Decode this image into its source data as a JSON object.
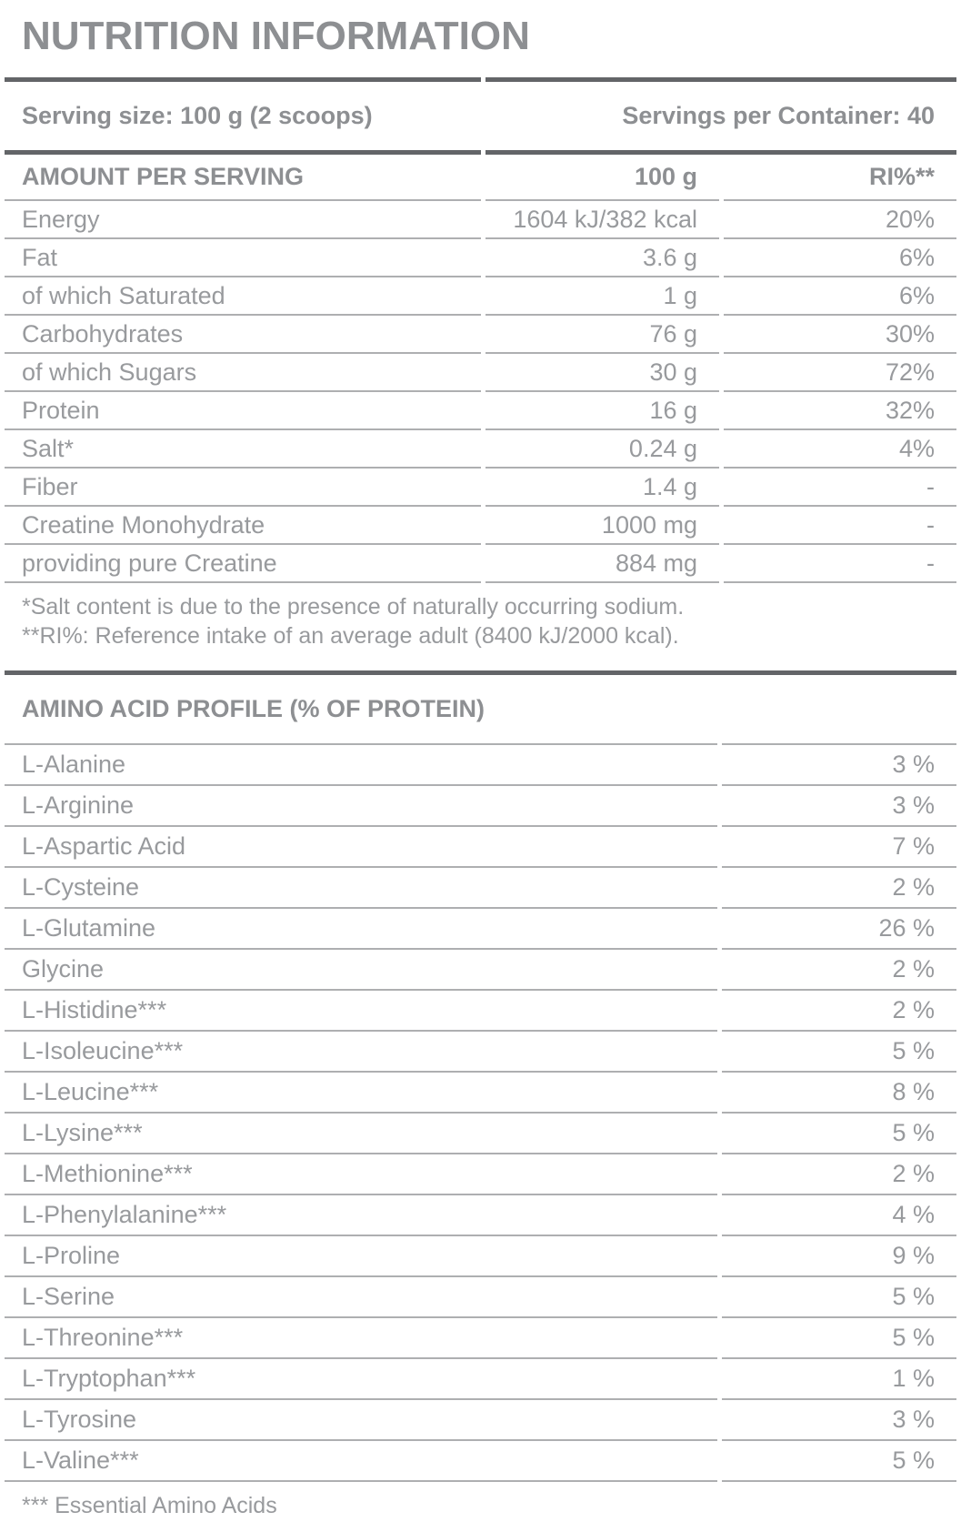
{
  "title": "NUTRITION INFORMATION",
  "serving": {
    "size": "Serving size: 100 g (2 scoops)",
    "per_container": "Servings per Container: 40"
  },
  "nutrition_table": {
    "headers": [
      "AMOUNT PER SERVING",
      "100 g",
      "RI%**"
    ],
    "rows": [
      {
        "label": "Energy",
        "amount": "1604 kJ/382 kcal",
        "ri": "20%"
      },
      {
        "label": "Fat",
        "amount": "3.6 g",
        "ri": "6%"
      },
      {
        "label": "of which Saturated",
        "amount": "1 g",
        "ri": "6%"
      },
      {
        "label": "Carbohydrates",
        "amount": "76 g",
        "ri": "30%"
      },
      {
        "label": "of which Sugars",
        "amount": "30 g",
        "ri": "72%"
      },
      {
        "label": "Protein",
        "amount": "16 g",
        "ri": "32%"
      },
      {
        "label": "Salt*",
        "amount": "0.24 g",
        "ri": "4%"
      },
      {
        "label": "Fiber",
        "amount": "1.4 g",
        "ri": "-"
      },
      {
        "label": "Creatine Monohydrate",
        "amount": "1000 mg",
        "ri": "-"
      },
      {
        "label": "providing pure Creatine",
        "amount": "884 mg",
        "ri": "-"
      }
    ],
    "footnotes": [
      "*Salt content is due to the presence of naturally occurring sodium.",
      "**RI%: Reference intake of an average adult (8400 kJ/2000 kcal)."
    ]
  },
  "amino_table": {
    "header": "AMINO ACID PROFILE (% OF PROTEIN)",
    "rows": [
      {
        "label": "L-Alanine",
        "value": "3 %"
      },
      {
        "label": "L-Arginine",
        "value": "3 %"
      },
      {
        "label": "L-Aspartic Acid",
        "value": "7 %"
      },
      {
        "label": "L-Cysteine",
        "value": "2 %"
      },
      {
        "label": "L-Glutamine",
        "value": "26 %"
      },
      {
        "label": "Glycine",
        "value": "2 %"
      },
      {
        "label": "L-Histidine***",
        "value": "2 %"
      },
      {
        "label": "L-Isoleucine***",
        "value": "5 %"
      },
      {
        "label": "L-Leucine***",
        "value": "8 %"
      },
      {
        "label": "L-Lysine***",
        "value": "5 %"
      },
      {
        "label": "L-Methionine***",
        "value": "2 %"
      },
      {
        "label": "L-Phenylalanine***",
        "value": "4 %"
      },
      {
        "label": "L-Proline",
        "value": "9 %"
      },
      {
        "label": "L-Serine",
        "value": "5 %"
      },
      {
        "label": "L-Threonine***",
        "value": "5 %"
      },
      {
        "label": "L-Tryptophan***",
        "value": "1 %"
      },
      {
        "label": "L-Tyrosine",
        "value": "3 %"
      },
      {
        "label": "L-Valine***",
        "value": "5 %"
      }
    ],
    "footnote": "*** Essential Amino Acids"
  },
  "colors": {
    "title_gray": "#8d8f92",
    "text_gray": "#989a9d",
    "heavy_line": "#636568",
    "thin_line": "#aeafb1",
    "background": "#ffffff"
  }
}
